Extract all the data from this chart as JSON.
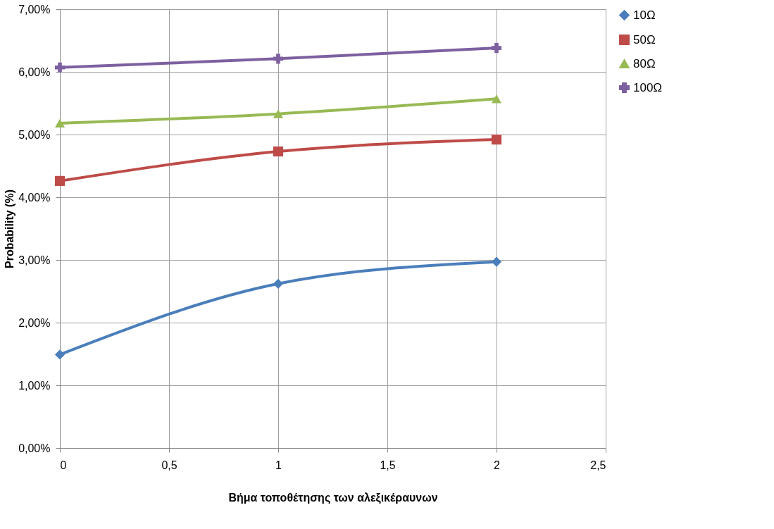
{
  "chart_data": {
    "type": "line",
    "xlabel": "Βήμα τοποθέτησης των αλεξικέραυνων",
    "ylabel": "Probability (%)",
    "x": [
      0,
      1,
      2
    ],
    "series": [
      {
        "name": "10Ω",
        "color": "#4a7ebb",
        "values": [
          1.49,
          2.62,
          2.97
        ],
        "marker": "diamond"
      },
      {
        "name": "50Ω",
        "color": "#be4b48",
        "values": [
          4.26,
          4.73,
          4.92
        ],
        "marker": "square"
      },
      {
        "name": "80Ω",
        "color": "#98b954",
        "values": [
          5.18,
          5.33,
          5.57
        ],
        "marker": "triangle"
      },
      {
        "name": "100Ω",
        "color": "#7d60a0",
        "values": [
          6.07,
          6.21,
          6.38
        ],
        "marker": "cross"
      }
    ],
    "xlim": [
      0,
      2.5
    ],
    "xticks": [
      0,
      {
        "value": 0.5,
        "label": "0,5"
      },
      1,
      {
        "value": 1.5,
        "label": "1,5"
      },
      2,
      {
        "value": 2.5,
        "label": "2,5"
      }
    ],
    "ylim": [
      0,
      7
    ],
    "yticks": [
      {
        "value": 0,
        "label": "0,00%"
      },
      {
        "value": 1,
        "label": "1,00%"
      },
      {
        "value": 2,
        "label": "2,00%"
      },
      {
        "value": 3,
        "label": "3,00%"
      },
      {
        "value": 4,
        "label": "4,00%"
      },
      {
        "value": 5,
        "label": "5,00%"
      },
      {
        "value": 6,
        "label": "6,00%"
      },
      {
        "value": 7,
        "label": "7,00%"
      }
    ],
    "grid": true,
    "legend": "right",
    "line_style": "solid"
  }
}
